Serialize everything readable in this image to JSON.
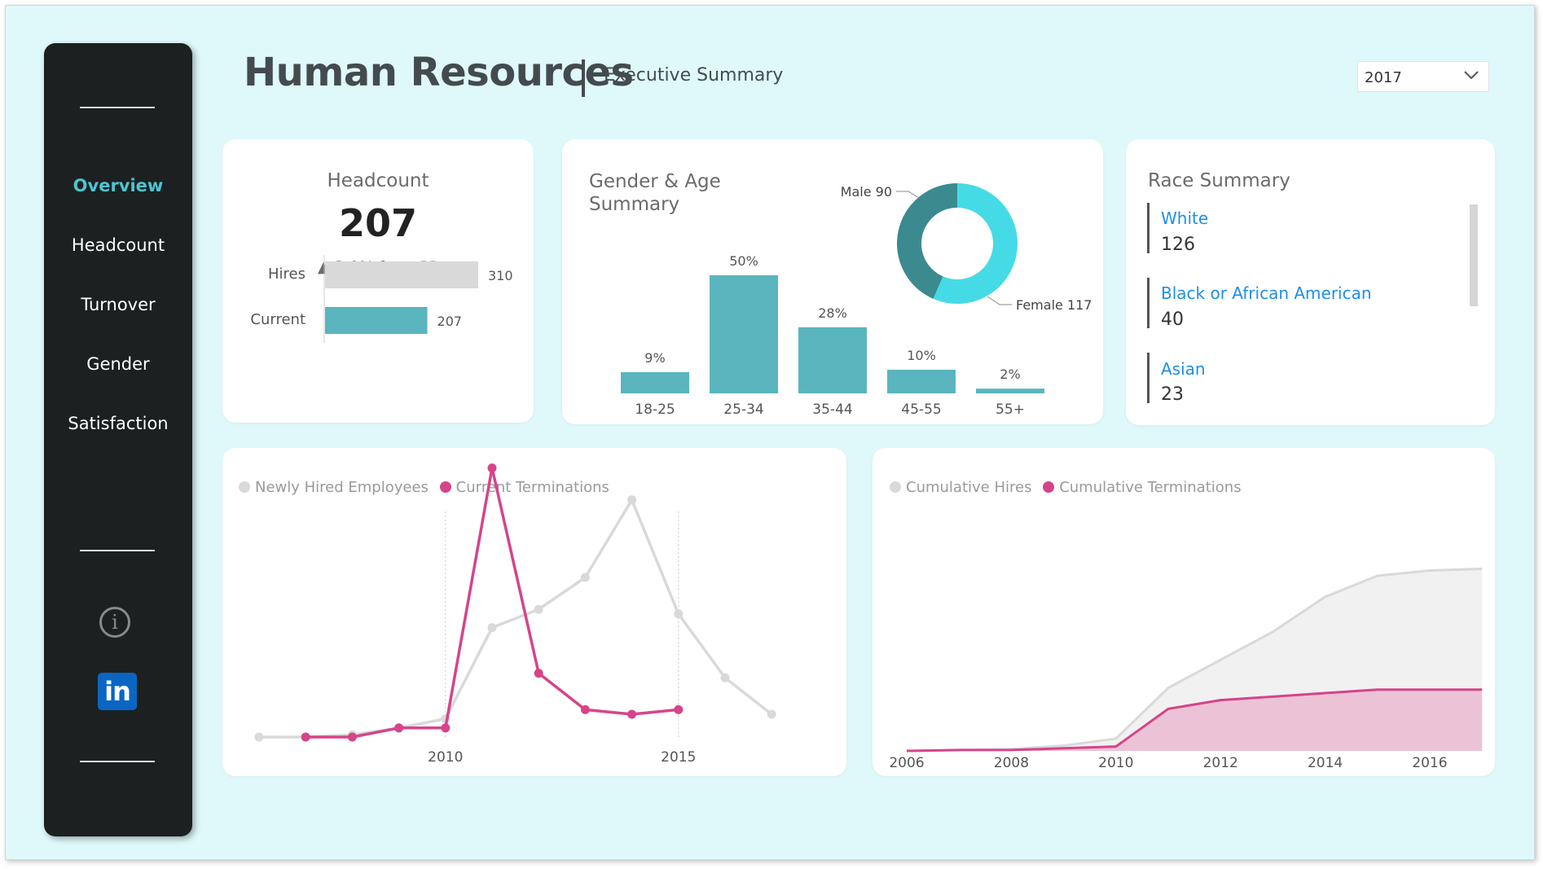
{
  "sidebar": {
    "items": [
      {
        "label": "Overview",
        "active": true
      },
      {
        "label": "Headcount",
        "active": false
      },
      {
        "label": "Turnover",
        "active": false
      },
      {
        "label": "Gender",
        "active": false
      },
      {
        "label": "Satisfaction",
        "active": false
      }
    ],
    "icons": [
      "info-icon",
      "linkedin-icon"
    ],
    "linkedin_text": "in",
    "info_text": "i"
  },
  "header": {
    "title": "Human Resources",
    "subtitle": "Executive Summary",
    "year_select": "2017"
  },
  "headcount": {
    "title": "Headcount",
    "value": "207",
    "change": "3.0% from PP",
    "change_arrow": "▲",
    "bars": [
      {
        "label": "Hires",
        "value": 310,
        "display": "310"
      },
      {
        "label": "Current",
        "value": 207,
        "display": "207"
      }
    ]
  },
  "colors": {
    "accent_teal": "#5ab5be",
    "pink": "#d6448a",
    "grey_line": "#d9d9d9",
    "donut_male": "#3b8a8f",
    "donut_female": "#45dbe6",
    "sidebar_bg": "#1c2021",
    "page_bg": "#dff9fb",
    "race_link": "#1f8ee8"
  },
  "gender_age": {
    "title_line1": "Gender & Age",
    "title_line2": "Summary",
    "male_label": "Male 90",
    "female_label": "Female 117"
  },
  "race": {
    "title": "Race Summary",
    "items": [
      {
        "name": "White",
        "value": "126"
      },
      {
        "name": "Black or African American",
        "value": "40"
      },
      {
        "name": "Asian",
        "value": "23"
      }
    ]
  },
  "chart_data": [
    {
      "type": "bar",
      "title": "Gender & Age Summary",
      "categories": [
        "18-25",
        "25-34",
        "35-44",
        "45-55",
        "55+"
      ],
      "values": [
        9,
        50,
        28,
        10,
        2
      ],
      "labels": [
        "9%",
        "50%",
        "28%",
        "10%",
        "2%"
      ],
      "unit": "%"
    },
    {
      "type": "pie",
      "subtype": "donut",
      "title": "Gender",
      "slices": [
        {
          "name": "Male",
          "value": 90
        },
        {
          "name": "Female",
          "value": 117
        }
      ]
    },
    {
      "type": "line",
      "x": [
        2006,
        2007,
        2008,
        2009,
        2010,
        2011,
        2012,
        2013,
        2014,
        2015,
        2016,
        2017
      ],
      "xticks": [
        "2010",
        "2015"
      ],
      "vlines": [
        2010,
        2015
      ],
      "series": [
        {
          "name": "Newly Hired Employees",
          "values": [
            0,
            0,
            0.5,
            2,
            4,
            24,
            28,
            35,
            52,
            27,
            13,
            5
          ]
        },
        {
          "name": "Current Terminations",
          "values": [
            null,
            0,
            0,
            2,
            2,
            59,
            14,
            6,
            5,
            6,
            null,
            null
          ]
        }
      ],
      "grid": false,
      "legend": "top-left"
    },
    {
      "type": "area",
      "x": [
        2006,
        2007,
        2008,
        2009,
        2010,
        2011,
        2012,
        2013,
        2014,
        2015,
        2016,
        2017
      ],
      "xticks": [
        "2006",
        "2008",
        "2010",
        "2012",
        "2014",
        "2016"
      ],
      "series": [
        {
          "name": "Cumulative Hires",
          "values": [
            0,
            0.5,
            1,
            3,
            7,
            36,
            52,
            68,
            88,
            100,
            103,
            104
          ]
        },
        {
          "name": "Cumulative Terminations",
          "values": [
            0,
            0.5,
            0.5,
            1.5,
            2.5,
            24,
            29,
            31,
            33,
            35,
            35,
            35
          ]
        }
      ],
      "grid": false,
      "legend": "top-left"
    }
  ]
}
